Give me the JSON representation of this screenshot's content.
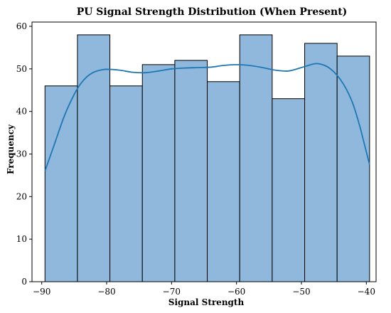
{
  "chart_data": {
    "type": "bar",
    "title": "PU Signal Strength Distribution (When Present)",
    "xlabel": "Signal Strength",
    "ylabel": "Frequency",
    "xlim": [
      -91.5,
      -38.5
    ],
    "ylim": [
      0,
      61
    ],
    "x_ticks": [
      -90,
      -80,
      -70,
      -60,
      -50,
      -40
    ],
    "y_ticks": [
      0,
      10,
      20,
      30,
      40,
      50,
      60
    ],
    "bins": [
      {
        "x0": -89.5,
        "x1": -84.5,
        "count": 46
      },
      {
        "x0": -84.5,
        "x1": -79.5,
        "count": 58
      },
      {
        "x0": -79.5,
        "x1": -74.5,
        "count": 46
      },
      {
        "x0": -74.5,
        "x1": -69.5,
        "count": 51
      },
      {
        "x0": -69.5,
        "x1": -64.5,
        "count": 52
      },
      {
        "x0": -64.5,
        "x1": -59.5,
        "count": 47
      },
      {
        "x0": -59.5,
        "x1": -54.5,
        "count": 58
      },
      {
        "x0": -54.5,
        "x1": -49.5,
        "count": 43
      },
      {
        "x0": -49.5,
        "x1": -44.5,
        "count": 56
      },
      {
        "x0": -44.5,
        "x1": -39.5,
        "count": 53
      }
    ],
    "kde": {
      "x": [
        -89.5,
        -88,
        -86.5,
        -85,
        -84,
        -83,
        -82,
        -81,
        -80,
        -78,
        -76,
        -74,
        -72,
        -70,
        -68,
        -66,
        -64,
        -62,
        -60,
        -58,
        -56,
        -54,
        -52,
        -50,
        -48,
        -47,
        -46,
        -45,
        -44,
        -43,
        -42,
        -41,
        -40.5,
        -39.5
      ],
      "y": [
        26,
        32.5,
        39,
        44,
        46.5,
        48.2,
        49.2,
        49.7,
        49.9,
        49.7,
        49.2,
        49.1,
        49.5,
        50,
        50.2,
        50.3,
        50.4,
        50.8,
        51,
        50.8,
        50.3,
        49.7,
        49.5,
        50.3,
        51.2,
        51.1,
        50.5,
        49.3,
        47.5,
        45,
        41.5,
        36.5,
        33.5,
        27.5
      ]
    },
    "bar_color": "#8fb8dc",
    "bar_edge_color": "#000000",
    "kde_color": "#1f77b4",
    "grid": false,
    "legend": "none"
  }
}
